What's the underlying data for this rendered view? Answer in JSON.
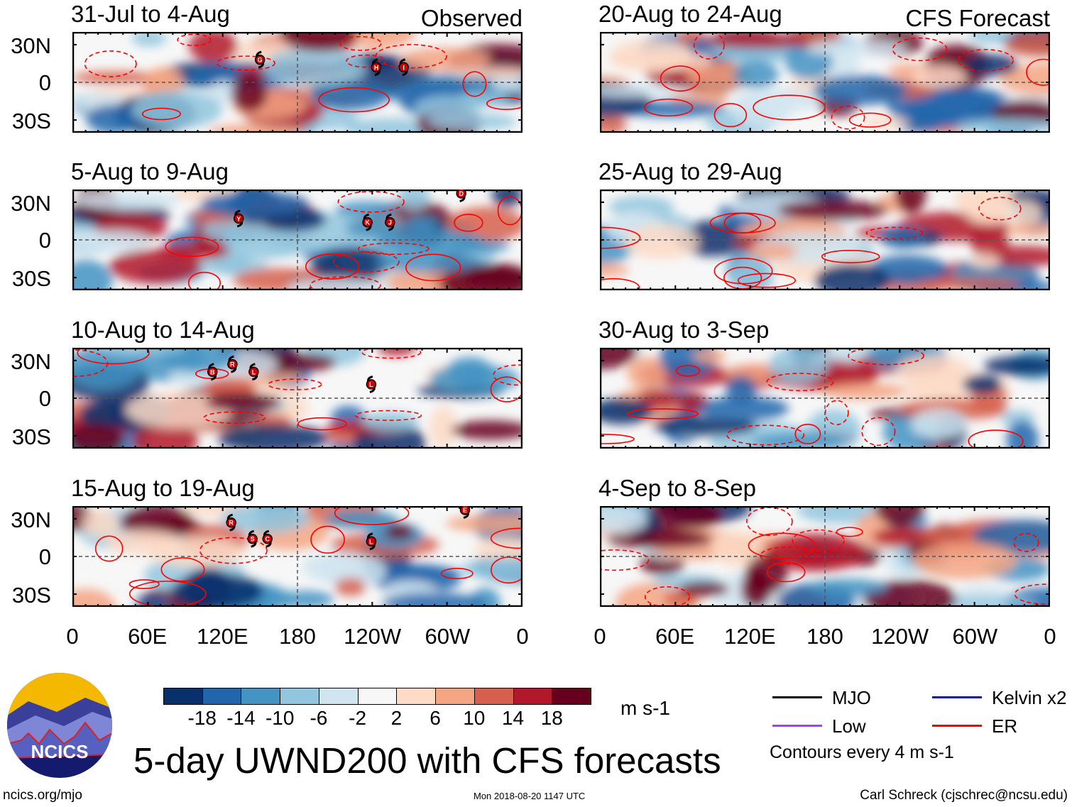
{
  "chart_data": {
    "type": "heatmap",
    "title": "5-day UWND200 with CFS forecasts",
    "units": "m s-1",
    "contour_note": "Contours every 4 m s-1",
    "x_ticks": [
      "0",
      "60E",
      "120E",
      "180",
      "120W",
      "60W",
      "0"
    ],
    "y_ticks": [
      "30N",
      "0",
      "30S"
    ],
    "colorbar_labels": [
      "-18",
      "-14",
      "-10",
      "-6",
      "-2",
      "2",
      "6",
      "10",
      "14",
      "18"
    ],
    "colorbar_colors": [
      "#08306b",
      "#2166ac",
      "#4393c3",
      "#92c5de",
      "#d1e5f0",
      "#f7f7f7",
      "#fddbc7",
      "#f4a582",
      "#d6604d",
      "#b2182b",
      "#67001f"
    ],
    "legend": [
      {
        "label": "MJO",
        "color": "#000000"
      },
      {
        "label": "Kelvin x2",
        "color": "#0000ff"
      },
      {
        "label": "Low",
        "color": "#a040ff"
      },
      {
        "label": "ER",
        "color": "#ff0000"
      }
    ],
    "panels": [
      {
        "title": "31-Jul to 4-Aug",
        "tag": "Observed",
        "storms": [
          {
            "id": "G",
            "lon": 150,
            "lat": 18
          },
          {
            "id": "H",
            "lon": 243,
            "lat": 12
          },
          {
            "id": "I",
            "lon": 265,
            "lat": 12
          }
        ]
      },
      {
        "title": "5-Aug to 9-Aug",
        "storms": [
          {
            "id": "Y",
            "lon": 133,
            "lat": 17
          },
          {
            "id": "K",
            "lon": 236,
            "lat": 14
          },
          {
            "id": "J",
            "lon": 254,
            "lat": 14
          },
          {
            "id": "D",
            "lon": 311,
            "lat": 37
          }
        ]
      },
      {
        "title": "10-Aug to 14-Aug",
        "storms": [
          {
            "id": "B",
            "lon": 112,
            "lat": 21
          },
          {
            "id": "R",
            "lon": 128,
            "lat": 27
          },
          {
            "id": "L",
            "lon": 145,
            "lat": 21
          },
          {
            "id": "L",
            "lon": 239,
            "lat": 11
          }
        ]
      },
      {
        "title": "15-Aug to 19-Aug",
        "storms": [
          {
            "id": "R",
            "lon": 127,
            "lat": 27
          },
          {
            "id": "S",
            "lon": 144,
            "lat": 14
          },
          {
            "id": "C",
            "lon": 156,
            "lat": 14
          },
          {
            "id": "L",
            "lon": 239,
            "lat": 12
          },
          {
            "id": "E",
            "lon": 314,
            "lat": 37
          }
        ]
      },
      {
        "title": "20-Aug to 24-Aug",
        "tag": "CFS Forecast",
        "storms": []
      },
      {
        "title": "25-Aug to 29-Aug",
        "storms": []
      },
      {
        "title": "30-Aug to 3-Sep",
        "storms": []
      },
      {
        "title": "4-Sep to 8-Sep",
        "storms": []
      }
    ]
  },
  "logo": {
    "text": "NCICS"
  },
  "footer": {
    "url": "ncics.org/mjo",
    "timestamp": "Mon 2018-08-20 1147 UTC",
    "author": "Carl Schreck (cjschrec@ncsu.edu)"
  }
}
